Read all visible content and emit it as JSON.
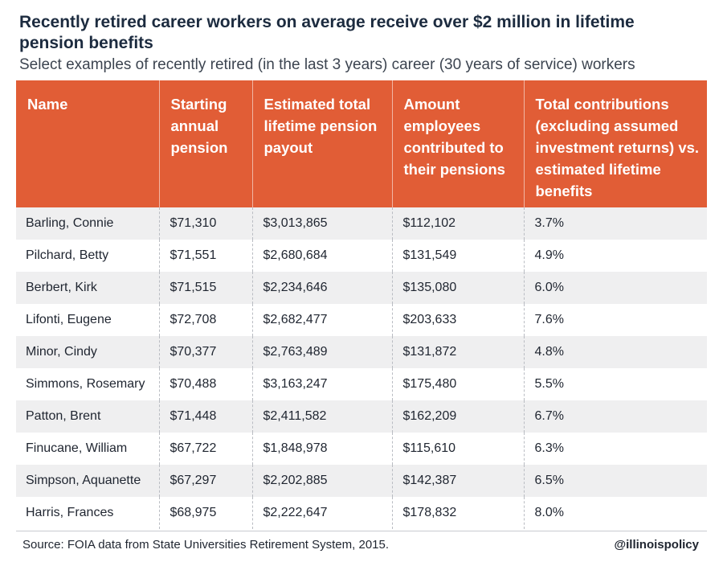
{
  "chart_data": {
    "type": "table",
    "title": "Recently retired career workers on average receive over $2 million in lifetime pension benefits",
    "subtitle": "Select examples of recently retired (in the last 3 years) career (30 years of service) workers",
    "columns": [
      "Name",
      "Starting annual pension",
      "Estimated total lifetime pension payout",
      "Amount employees contributed to their pensions",
      "Total contributions (excluding assumed investment returns) vs. estimated lifetime benefits"
    ],
    "rows": [
      [
        "Barling, Connie",
        "$71,310",
        "$3,013,865",
        "$112,102",
        "3.7%"
      ],
      [
        "Pilchard, Betty",
        "$71,551",
        "$2,680,684",
        "$131,549",
        "4.9%"
      ],
      [
        "Berbert, Kirk",
        "$71,515",
        "$2,234,646",
        "$135,080",
        "6.0%"
      ],
      [
        "Lifonti, Eugene",
        "$72,708",
        "$2,682,477",
        "$203,633",
        "7.6%"
      ],
      [
        "Minor, Cindy",
        "$70,377",
        "$2,763,489",
        "$131,872",
        "4.8%"
      ],
      [
        "Simmons, Rosemary",
        "$70,488",
        "$3,163,247",
        "$175,480",
        "5.5%"
      ],
      [
        "Patton, Brent",
        "$71,448",
        "$2,411,582",
        "$162,209",
        "6.7%"
      ],
      [
        "Finucane, William",
        "$67,722",
        "$1,848,978",
        "$115,610",
        "6.3%"
      ],
      [
        "Simpson, Aquanette",
        "$67,297",
        "$2,202,885",
        "$142,387",
        "6.5%"
      ],
      [
        "Harris, Frances",
        "$68,975",
        "$2,222,647",
        "$178,832",
        "8.0%"
      ]
    ],
    "source": "Source: FOIA data from State Universities Retirement System, 2015.",
    "credit": "@illinoispolicy"
  },
  "colors": {
    "header_bg": "#e15d36",
    "header_text": "#ffffff",
    "row_alt_bg": "#efeff0",
    "title_text": "#1c2b3f"
  }
}
